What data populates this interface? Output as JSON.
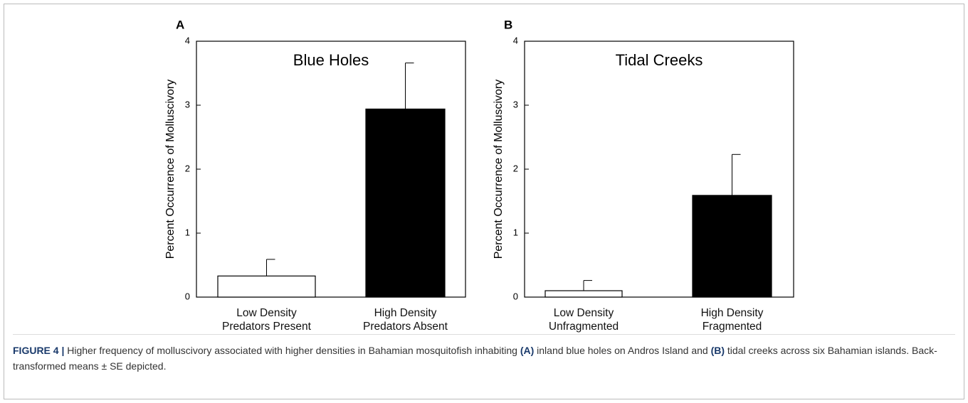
{
  "chart_data": [
    {
      "type": "bar",
      "panel": "A",
      "title": "Blue Holes",
      "y_label": "Percent Occurrence of Molluscivory",
      "categories": [
        "Low Density\nPredators Present",
        "High Density\nPredators Absent"
      ],
      "values": [
        0.33,
        2.94
      ],
      "errors": [
        0.26,
        0.72
      ],
      "colors": [
        "#ffffff",
        "#000000"
      ],
      "ylim": [
        0,
        4
      ],
      "yticks": [
        0,
        1,
        2,
        3,
        4
      ]
    },
    {
      "type": "bar",
      "panel": "B",
      "title": "Tidal Creeks",
      "y_label": "Percent Occurrence of Molluscivory",
      "categories": [
        "Low Density\nUnfragmented",
        "High Density\nFragmented"
      ],
      "values": [
        0.1,
        1.59
      ],
      "errors": [
        0.16,
        0.64
      ],
      "colors": [
        "#ffffff",
        "#000000"
      ],
      "ylim": [
        0,
        4
      ],
      "yticks": [
        0,
        1,
        2,
        3,
        4
      ]
    }
  ],
  "caption": {
    "label": "FIGURE 4 |",
    "parts": [
      "Higher frequency of molluscivory associated with higher densities in Bahamian mosquitofish inhabiting",
      "(A)",
      "inland blue holes on Andros Island and",
      "(B)",
      "tidal creeks across six Bahamian islands. Back-transformed means ± SE depicted."
    ]
  }
}
